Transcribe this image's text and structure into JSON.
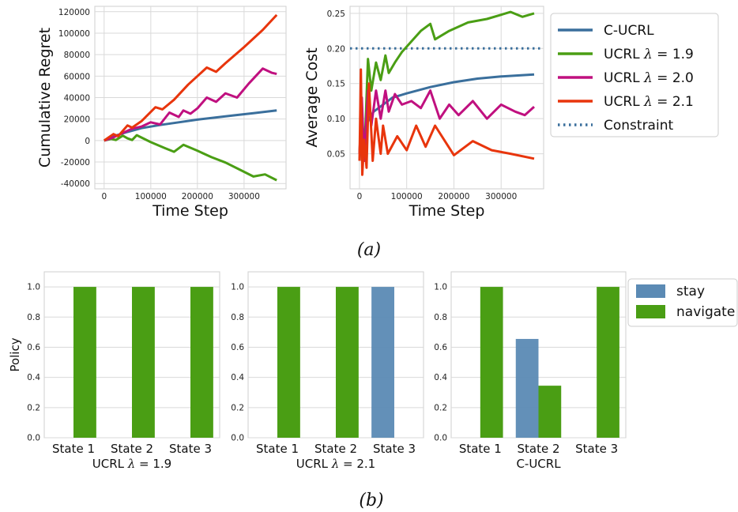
{
  "figure": {
    "caption_a": "(a)",
    "caption_b": "(b)"
  },
  "colors": {
    "C-UCRL": "#3a6f9c",
    "UCRL 1.9": "#4a9e14",
    "UCRL 2.0": "#c0107f",
    "UCRL 2.1": "#e8350c",
    "stay": "#5b8ab4",
    "navigate": "#4a9e14"
  },
  "legend_a": [
    {
      "label": "C-UCRL",
      "color": "#3a6f9c",
      "style": "solid"
    },
    {
      "label": "UCRL λ = 1.9",
      "color": "#4a9e14",
      "style": "solid"
    },
    {
      "label": "UCRL λ = 2.0",
      "color": "#c0107f",
      "style": "solid"
    },
    {
      "label": "UCRL λ = 2.1",
      "color": "#e8350c",
      "style": "solid"
    },
    {
      "label": "Constraint",
      "color": "#3a6f9c",
      "style": "dotted"
    }
  ],
  "legend_b": [
    {
      "label": "stay",
      "color": "#5b8ab4"
    },
    {
      "label": "navigate",
      "color": "#4a9e14"
    }
  ],
  "chart_data": [
    {
      "id": "regret",
      "type": "line",
      "xlabel": "Time Step",
      "ylabel": "Cumulative Regret",
      "xlim": [
        -20000,
        390000
      ],
      "ylim": [
        -45000,
        125000
      ],
      "xticks": [
        0,
        100000,
        200000,
        300000
      ],
      "xtick_labels": [
        "0",
        "100000",
        "200000",
        "300000"
      ],
      "yticks": [
        -40000,
        -20000,
        0,
        20000,
        40000,
        60000,
        80000,
        100000,
        120000
      ],
      "ytick_labels": [
        "-40000",
        "-20000",
        "0",
        "20000",
        "40000",
        "60000",
        "80000",
        "100000",
        "120000"
      ],
      "grid": true,
      "series": [
        {
          "key": "C-UCRL",
          "x": [
            0,
            20000,
            50000,
            80000,
            120000,
            160000,
            200000,
            240000,
            280000,
            320000,
            370000
          ],
          "y": [
            0,
            4000,
            8000,
            11500,
            14500,
            17000,
            19500,
            21500,
            23500,
            25500,
            28000
          ]
        },
        {
          "key": "UCRL 1.9",
          "x": [
            0,
            15000,
            25000,
            40000,
            50000,
            60000,
            70000,
            100000,
            130000,
            150000,
            170000,
            200000,
            230000,
            260000,
            290000,
            320000,
            345000,
            370000
          ],
          "y": [
            0,
            1500,
            500,
            4500,
            2000,
            500,
            5000,
            -1500,
            -7000,
            -10500,
            -4000,
            -9500,
            -15500,
            -20500,
            -27000,
            -33500,
            -31500,
            -37000
          ]
        },
        {
          "key": "UCRL 2.0",
          "x": [
            0,
            20000,
            40000,
            60000,
            80000,
            100000,
            120000,
            140000,
            160000,
            170000,
            185000,
            200000,
            220000,
            240000,
            260000,
            285000,
            310000,
            340000,
            360000,
            370000
          ],
          "y": [
            0,
            3000,
            7000,
            11000,
            13000,
            17000,
            15000,
            26000,
            22000,
            28000,
            25000,
            30000,
            40000,
            36000,
            44000,
            40000,
            53000,
            67000,
            63000,
            62000
          ]
        },
        {
          "key": "UCRL 2.1",
          "x": [
            0,
            20000,
            30000,
            50000,
            60000,
            80000,
            110000,
            125000,
            150000,
            180000,
            200000,
            220000,
            240000,
            260000,
            300000,
            340000,
            370000
          ],
          "y": [
            0,
            6000,
            4000,
            14000,
            12000,
            18000,
            31000,
            29000,
            38000,
            52000,
            60000,
            68000,
            64000,
            72000,
            87000,
            103000,
            117000
          ]
        }
      ]
    },
    {
      "id": "cost",
      "type": "line",
      "xlabel": "Time Step",
      "ylabel": "Average Cost",
      "xlim": [
        -20000,
        390000
      ],
      "ylim": [
        0.0,
        0.26
      ],
      "xticks": [
        0,
        100000,
        200000,
        300000
      ],
      "xtick_labels": [
        "0",
        "100000",
        "200000",
        "300000"
      ],
      "yticks": [
        0.05,
        0.1,
        0.15,
        0.2,
        0.25
      ],
      "ytick_labels": [
        "0.05",
        "0.10",
        "0.15",
        "0.20",
        "0.25"
      ],
      "grid": true,
      "constraint": 0.2,
      "series": [
        {
          "key": "C-UCRL",
          "x": [
            0,
            5000,
            10000,
            20000,
            30000,
            50000,
            70000,
            100000,
            150000,
            200000,
            250000,
            300000,
            370000
          ],
          "y": [
            0.04,
            0.09,
            0.08,
            0.1,
            0.11,
            0.12,
            0.13,
            0.136,
            0.145,
            0.152,
            0.157,
            0.16,
            0.163
          ]
        },
        {
          "key": "UCRL 1.9",
          "x": [
            0,
            5000,
            10000,
            18000,
            25000,
            35000,
            45000,
            55000,
            62000,
            75000,
            90000,
            110000,
            130000,
            150000,
            160000,
            190000,
            230000,
            270000,
            320000,
            345000,
            370000
          ],
          "y": [
            0.05,
            0.12,
            0.04,
            0.185,
            0.14,
            0.18,
            0.155,
            0.19,
            0.165,
            0.18,
            0.195,
            0.21,
            0.225,
            0.235,
            0.213,
            0.225,
            0.237,
            0.242,
            0.252,
            0.245,
            0.25
          ]
        },
        {
          "key": "UCRL 2.0",
          "x": [
            0,
            5000,
            10000,
            18000,
            25000,
            35000,
            45000,
            55000,
            62000,
            75000,
            90000,
            110000,
            130000,
            150000,
            170000,
            190000,
            210000,
            240000,
            270000,
            300000,
            330000,
            350000,
            370000
          ],
          "y": [
            0.05,
            0.13,
            0.04,
            0.14,
            0.09,
            0.14,
            0.1,
            0.14,
            0.11,
            0.135,
            0.12,
            0.125,
            0.115,
            0.14,
            0.1,
            0.12,
            0.105,
            0.125,
            0.1,
            0.12,
            0.11,
            0.105,
            0.117
          ]
        },
        {
          "key": "UCRL 2.1",
          "x": [
            0,
            3000,
            6000,
            10000,
            15000,
            20000,
            28000,
            35000,
            45000,
            50000,
            60000,
            80000,
            100000,
            120000,
            140000,
            160000,
            200000,
            240000,
            280000,
            320000,
            370000
          ],
          "y": [
            0.04,
            0.17,
            0.02,
            0.07,
            0.03,
            0.15,
            0.04,
            0.1,
            0.05,
            0.09,
            0.05,
            0.075,
            0.055,
            0.09,
            0.06,
            0.09,
            0.048,
            0.068,
            0.055,
            0.05,
            0.043
          ]
        }
      ]
    },
    {
      "id": "policy-1",
      "type": "bar",
      "subtitle": "UCRL λ = 1.9",
      "ylabel": "Policy",
      "categories": [
        "State 1",
        "State 2",
        "State 3"
      ],
      "ylim": [
        0,
        1.1
      ],
      "yticks": [
        0.0,
        0.2,
        0.4,
        0.6,
        0.8,
        1.0
      ],
      "ytick_labels": [
        "0.0",
        "0.2",
        "0.4",
        "0.6",
        "0.8",
        "1.0"
      ],
      "series": [
        {
          "key": "stay",
          "values": [
            0,
            0,
            0
          ]
        },
        {
          "key": "navigate",
          "values": [
            1.0,
            1.0,
            1.0
          ]
        }
      ]
    },
    {
      "id": "policy-2",
      "type": "bar",
      "subtitle": "UCRL λ = 2.1",
      "ylabel": "",
      "categories": [
        "State 1",
        "State 2",
        "State 3"
      ],
      "ylim": [
        0,
        1.1
      ],
      "yticks": [
        0.0,
        0.2,
        0.4,
        0.6,
        0.8,
        1.0
      ],
      "ytick_labels": [
        "0.0",
        "0.2",
        "0.4",
        "0.6",
        "0.8",
        "1.0"
      ],
      "series": [
        {
          "key": "stay",
          "values": [
            0,
            0,
            1.0
          ]
        },
        {
          "key": "navigate",
          "values": [
            1.0,
            1.0,
            0
          ]
        }
      ]
    },
    {
      "id": "policy-3",
      "type": "bar",
      "subtitle": "C-UCRL",
      "ylabel": "",
      "categories": [
        "State 1",
        "State 2",
        "State 3"
      ],
      "ylim": [
        0,
        1.1
      ],
      "yticks": [
        0.0,
        0.2,
        0.4,
        0.6,
        0.8,
        1.0
      ],
      "ytick_labels": [
        "0.0",
        "0.2",
        "0.4",
        "0.6",
        "0.8",
        "1.0"
      ],
      "series": [
        {
          "key": "stay",
          "values": [
            0,
            0.655,
            0
          ]
        },
        {
          "key": "navigate",
          "values": [
            1.0,
            0.345,
            1.0
          ]
        }
      ]
    }
  ]
}
